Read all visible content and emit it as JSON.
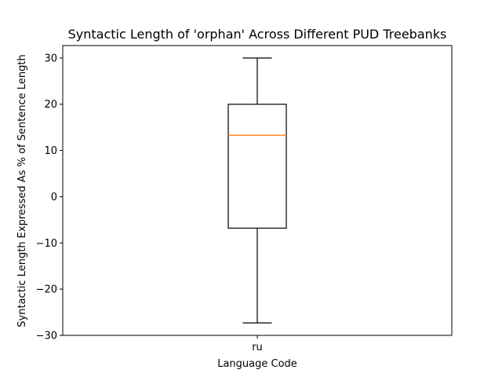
{
  "chart_data": {
    "type": "boxplot",
    "title": "Syntactic Length of 'orphan' Across Different PUD Treebanks",
    "xlabel": "Language Code",
    "ylabel": "Syntactic Length Expressed As % of Sentence Length",
    "ylim": [
      -30.0,
      32.7
    ],
    "yticks": [
      30,
      20,
      10,
      0,
      -10,
      -20,
      -30
    ],
    "ytick_labels": [
      "30",
      "20",
      "10",
      "0",
      "−10",
      "−20",
      "−30"
    ],
    "categories": [
      "ru"
    ],
    "boxes": [
      {
        "category": "ru",
        "whisker_low": -27.3,
        "q1": -6.8,
        "median": 13.3,
        "q3": 20.0,
        "whisker_high": 30.0
      }
    ],
    "grid": false,
    "colors": {
      "box": "#000000",
      "median": "#ff7f0e",
      "frame": "#000000"
    }
  }
}
